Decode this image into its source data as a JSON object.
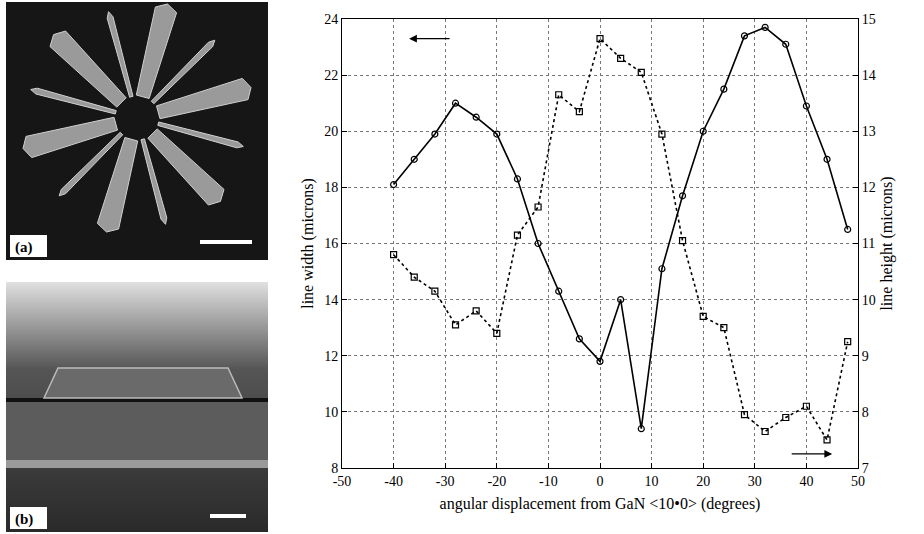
{
  "panels": [
    {
      "label": "(a)"
    },
    {
      "label": "(b)"
    }
  ],
  "chart_data": {
    "type": "line",
    "x_label": "angular displacement from GaN <10•0> (degrees)",
    "y_label": "line width (microns)",
    "y2_label": "line height (microns)",
    "x": [
      -40,
      -36,
      -32,
      -28,
      -24,
      -20,
      -16,
      -12,
      -8,
      -4,
      0,
      4,
      8,
      12,
      16,
      20,
      24,
      28,
      32,
      36,
      40,
      44,
      48
    ],
    "series": [
      {
        "color": "#000000",
        "marker": "circle",
        "line_style": "solid",
        "values": [
          18.1,
          19.0,
          19.9,
          21.0,
          20.5,
          19.9,
          18.3,
          16.0,
          14.3,
          12.6,
          11.8,
          14.0,
          9.4,
          15.1,
          17.7,
          20.0,
          21.5,
          23.4,
          23.7,
          23.1,
          20.9,
          19.0,
          16.5
        ]
      },
      {
        "color": "#000000",
        "marker": "square",
        "line_style": "dot",
        "axis": "y2",
        "values": [
          10.8,
          10.4,
          10.15,
          9.55,
          9.8,
          9.4,
          11.15,
          11.65,
          13.65,
          13.35,
          14.65,
          14.3,
          14.05,
          12.95,
          11.05,
          9.7,
          9.5,
          7.95,
          7.65,
          7.9,
          8.1,
          7.5,
          9.25
        ]
      }
    ],
    "xlim": [
      -50,
      50
    ],
    "xticks": [
      -50,
      -40,
      -30,
      -20,
      -10,
      0,
      10,
      20,
      30,
      40,
      50
    ],
    "ylim": [
      8,
      24
    ],
    "yticks": [
      8,
      10,
      12,
      14,
      16,
      18,
      20,
      22,
      24
    ],
    "y2lim": [
      7,
      15
    ],
    "y2ticks": [
      7,
      8,
      9,
      10,
      11,
      12,
      13,
      14,
      15
    ],
    "grid": true
  }
}
